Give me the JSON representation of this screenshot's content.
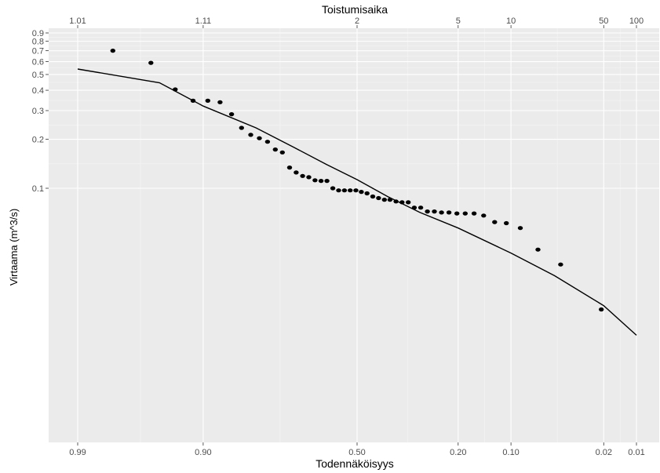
{
  "chart_data": {
    "type": "scatter",
    "title": "",
    "top_axis_title": "Toistumisaika",
    "xlabel": "Todennäköisyys",
    "ylabel": "Virtaama (m^3/s)",
    "x_scale": "normal-probability",
    "y_scale": "log",
    "grid": true,
    "x_ticks_bottom": [
      {
        "p": 0.99,
        "label": "0.99"
      },
      {
        "p": 0.9,
        "label": "0.90"
      },
      {
        "p": 0.5,
        "label": "0.50"
      },
      {
        "p": 0.2,
        "label": "0.20"
      },
      {
        "p": 0.1,
        "label": "0.10"
      },
      {
        "p": 0.02,
        "label": "0.02"
      },
      {
        "p": 0.01,
        "label": "0.01"
      }
    ],
    "x_ticks_top": [
      {
        "p": 0.99,
        "label": "1.01"
      },
      {
        "p": 0.9,
        "label": "1.11"
      },
      {
        "p": 0.5,
        "label": "2"
      },
      {
        "p": 0.2,
        "label": "5"
      },
      {
        "p": 0.1,
        "label": "10"
      },
      {
        "p": 0.02,
        "label": "50"
      },
      {
        "p": 0.01,
        "label": "100"
      }
    ],
    "y_ticks": [
      {
        "v": 0.1,
        "label": "0.1"
      },
      {
        "v": 0.2,
        "label": "0.2"
      },
      {
        "v": 0.3,
        "label": "0.3"
      },
      {
        "v": 0.4,
        "label": "0.4"
      },
      {
        "v": 0.5,
        "label": "0.5"
      },
      {
        "v": 0.6,
        "label": "0.6"
      },
      {
        "v": 0.7,
        "label": "0.7"
      },
      {
        "v": 0.8,
        "label": "0.8"
      },
      {
        "v": 0.9,
        "label": "0.9"
      }
    ],
    "points": [
      {
        "p": 0.979,
        "y": 0.7
      },
      {
        "p": 0.957,
        "y": 0.59
      },
      {
        "p": 0.935,
        "y": 0.405
      },
      {
        "p": 0.914,
        "y": 0.345
      },
      {
        "p": 0.893,
        "y": 0.345
      },
      {
        "p": 0.873,
        "y": 0.338
      },
      {
        "p": 0.852,
        "y": 0.285
      },
      {
        "p": 0.832,
        "y": 0.235
      },
      {
        "p": 0.812,
        "y": 0.213
      },
      {
        "p": 0.792,
        "y": 0.203
      },
      {
        "p": 0.772,
        "y": 0.193
      },
      {
        "p": 0.752,
        "y": 0.173
      },
      {
        "p": 0.733,
        "y": 0.166
      },
      {
        "p": 0.713,
        "y": 0.134
      },
      {
        "p": 0.694,
        "y": 0.125
      },
      {
        "p": 0.675,
        "y": 0.119
      },
      {
        "p": 0.656,
        "y": 0.117
      },
      {
        "p": 0.637,
        "y": 0.112
      },
      {
        "p": 0.618,
        "y": 0.111
      },
      {
        "p": 0.599,
        "y": 0.111
      },
      {
        "p": 0.58,
        "y": 0.1
      },
      {
        "p": 0.561,
        "y": 0.097
      },
      {
        "p": 0.542,
        "y": 0.097
      },
      {
        "p": 0.523,
        "y": 0.097
      },
      {
        "p": 0.504,
        "y": 0.097
      },
      {
        "p": 0.486,
        "y": 0.095
      },
      {
        "p": 0.467,
        "y": 0.093
      },
      {
        "p": 0.448,
        "y": 0.089
      },
      {
        "p": 0.429,
        "y": 0.087
      },
      {
        "p": 0.41,
        "y": 0.085
      },
      {
        "p": 0.392,
        "y": 0.085
      },
      {
        "p": 0.373,
        "y": 0.083
      },
      {
        "p": 0.354,
        "y": 0.082
      },
      {
        "p": 0.335,
        "y": 0.082
      },
      {
        "p": 0.317,
        "y": 0.076
      },
      {
        "p": 0.298,
        "y": 0.076
      },
      {
        "p": 0.279,
        "y": 0.072
      },
      {
        "p": 0.26,
        "y": 0.072
      },
      {
        "p": 0.241,
        "y": 0.071
      },
      {
        "p": 0.222,
        "y": 0.071
      },
      {
        "p": 0.203,
        "y": 0.07
      },
      {
        "p": 0.184,
        "y": 0.07
      },
      {
        "p": 0.165,
        "y": 0.07
      },
      {
        "p": 0.146,
        "y": 0.068
      },
      {
        "p": 0.126,
        "y": 0.062
      },
      {
        "p": 0.107,
        "y": 0.061
      },
      {
        "p": 0.087,
        "y": 0.057
      },
      {
        "p": 0.066,
        "y": 0.042
      },
      {
        "p": 0.045,
        "y": 0.034
      },
      {
        "p": 0.021,
        "y": 0.018
      }
    ],
    "fit_curve": [
      {
        "p": 0.99,
        "y": 0.54
      },
      {
        "p": 0.95,
        "y": 0.445
      },
      {
        "p": 0.9,
        "y": 0.32
      },
      {
        "p": 0.8,
        "y": 0.235
      },
      {
        "p": 0.7,
        "y": 0.178
      },
      {
        "p": 0.6,
        "y": 0.14
      },
      {
        "p": 0.5,
        "y": 0.113
      },
      {
        "p": 0.4,
        "y": 0.089
      },
      {
        "p": 0.3,
        "y": 0.071
      },
      {
        "p": 0.2,
        "y": 0.057
      },
      {
        "p": 0.1,
        "y": 0.04
      },
      {
        "p": 0.05,
        "y": 0.029
      },
      {
        "p": 0.02,
        "y": 0.019
      },
      {
        "p": 0.01,
        "y": 0.0125
      }
    ],
    "colors": {
      "panel": "#ebebeb",
      "grid_major": "#ffffff",
      "grid_minor": "#f5f5f5",
      "points": "#000000",
      "fit_line": "#000000",
      "tick_text": "#4d4d4d",
      "axis_title": "#000000"
    }
  }
}
